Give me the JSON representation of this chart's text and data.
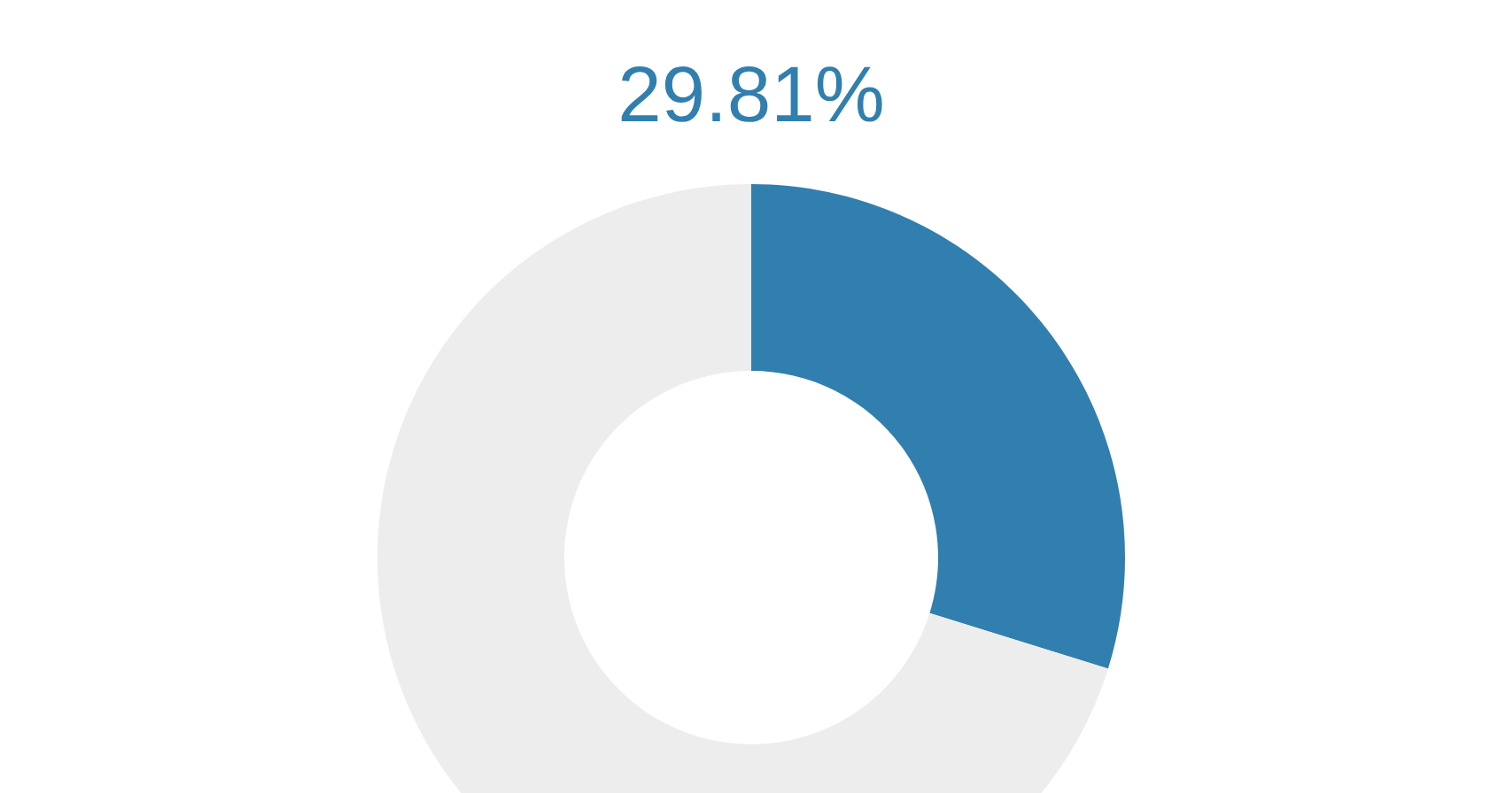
{
  "chart_data": {
    "type": "donut",
    "title": "29.81%",
    "categories": [
      null,
      null
    ],
    "values": [
      29.81,
      70.19
    ],
    "colors": [
      "#317fae",
      "#ededed"
    ]
  }
}
